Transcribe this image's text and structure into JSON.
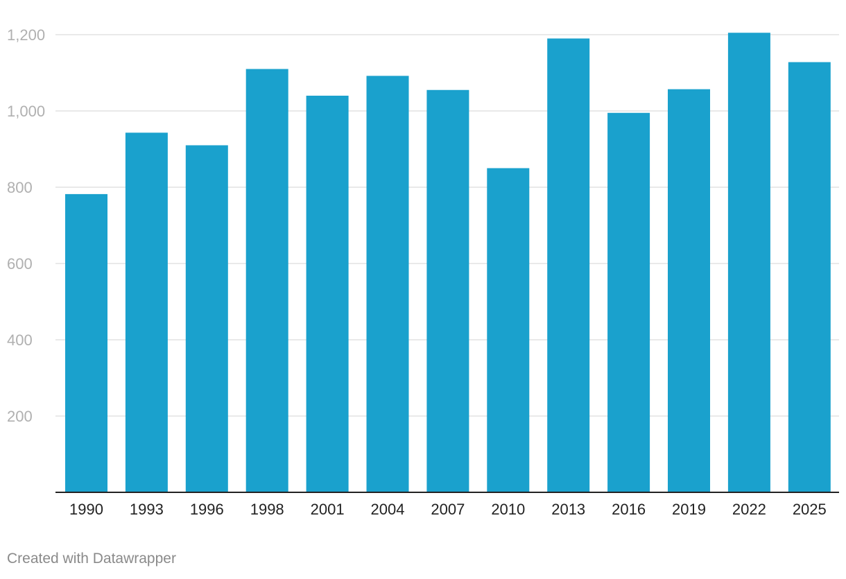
{
  "chart_data": {
    "type": "bar",
    "categories": [
      "1990",
      "1993",
      "1996",
      "1998",
      "2001",
      "2004",
      "2007",
      "2010",
      "2013",
      "2016",
      "2019",
      "2022",
      "2025"
    ],
    "series": [
      {
        "values": [
          782,
          943,
          910,
          1110,
          1040,
          1092,
          1055,
          850,
          1190,
          995,
          1057,
          1205,
          1128
        ]
      }
    ],
    "ylim": [
      0,
      1200
    ],
    "yticks": [
      200,
      400,
      600,
      800,
      1000,
      1200
    ],
    "ytick_labels": [
      "200",
      "400",
      "600",
      "800",
      "1,000",
      "1,200"
    ],
    "grid": true,
    "bar_color": "#1aa1cd",
    "title": "",
    "xlabel": "",
    "ylabel": ""
  },
  "footer": {
    "credit": "Created with Datawrapper"
  }
}
